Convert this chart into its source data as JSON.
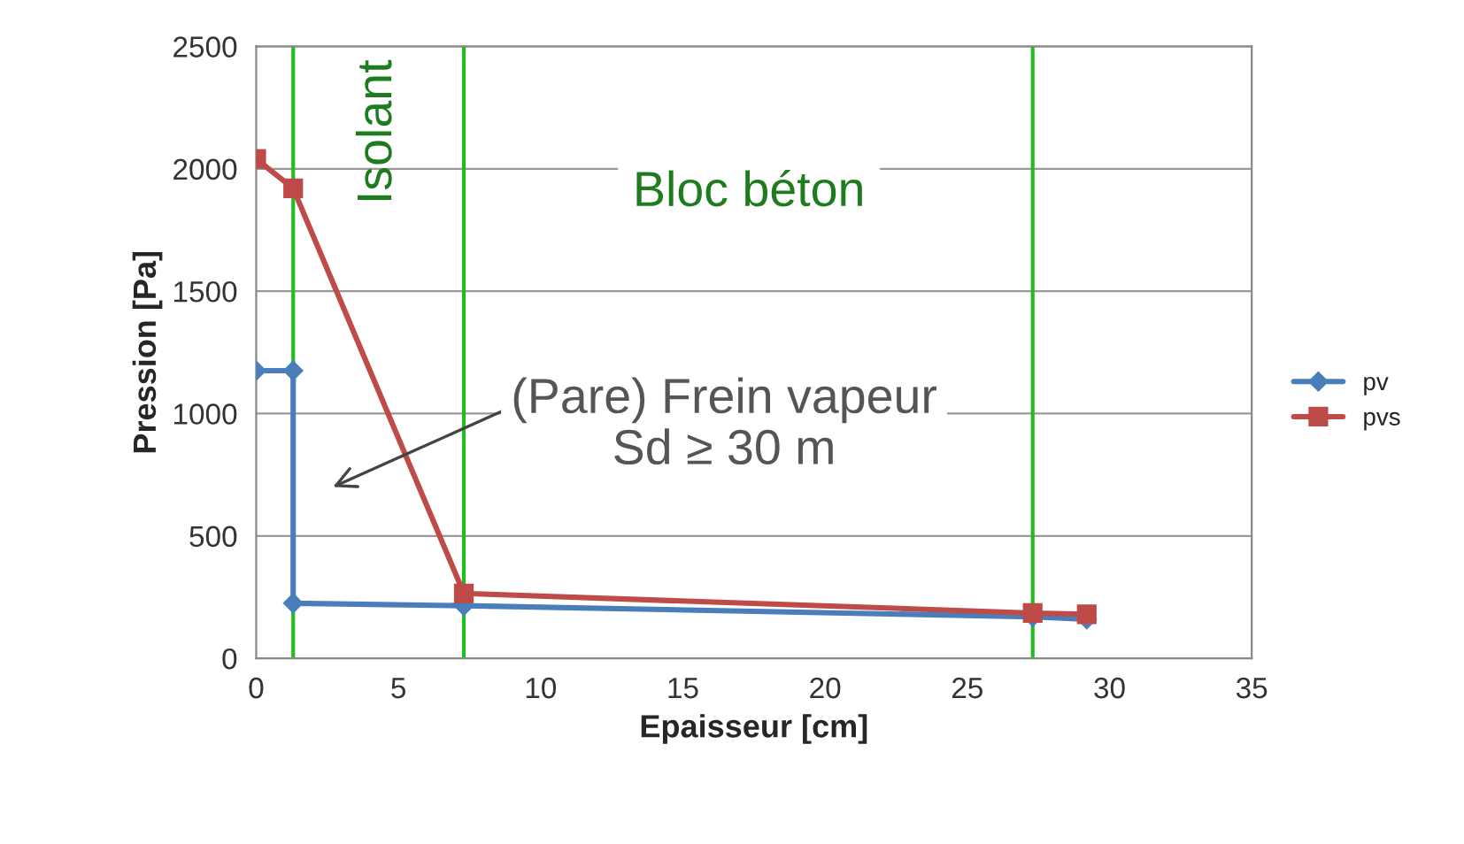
{
  "chart_data": {
    "type": "line",
    "xlabel": "Epaisseur [cm]",
    "ylabel": "Pression [Pa]",
    "xlim": [
      0,
      35
    ],
    "xticks": [
      0,
      5,
      10,
      15,
      20,
      25,
      30,
      35
    ],
    "ylim": [
      0,
      2500
    ],
    "yticks": [
      0,
      500,
      1000,
      1500,
      2000,
      2500
    ],
    "grid": "y",
    "legend": "right",
    "series": [
      {
        "name": "pv",
        "color": "#4a7ebb",
        "marker": "diamond",
        "x": [
          0,
          1.3,
          1.3,
          7.3,
          27.3,
          29.2
        ],
        "values": [
          1175,
          1175,
          225,
          215,
          170,
          160
        ]
      },
      {
        "name": "pvs",
        "color": "#be4b48",
        "marker": "square",
        "x": [
          0,
          1.3,
          7.3,
          27.3,
          29.2
        ],
        "values": [
          2040,
          1920,
          265,
          185,
          180
        ]
      }
    ],
    "ref_lines": [
      {
        "axis": "x",
        "value": 1.3,
        "color": "#22bb22"
      },
      {
        "axis": "x",
        "value": 7.3,
        "color": "#22bb22"
      },
      {
        "axis": "x",
        "value": 27.3,
        "color": "#22bb22"
      }
    ],
    "annotations": [
      "Isolant",
      "Bloc béton",
      "(Pare) Frein vapeur\nSd ≥ 30 m"
    ]
  }
}
